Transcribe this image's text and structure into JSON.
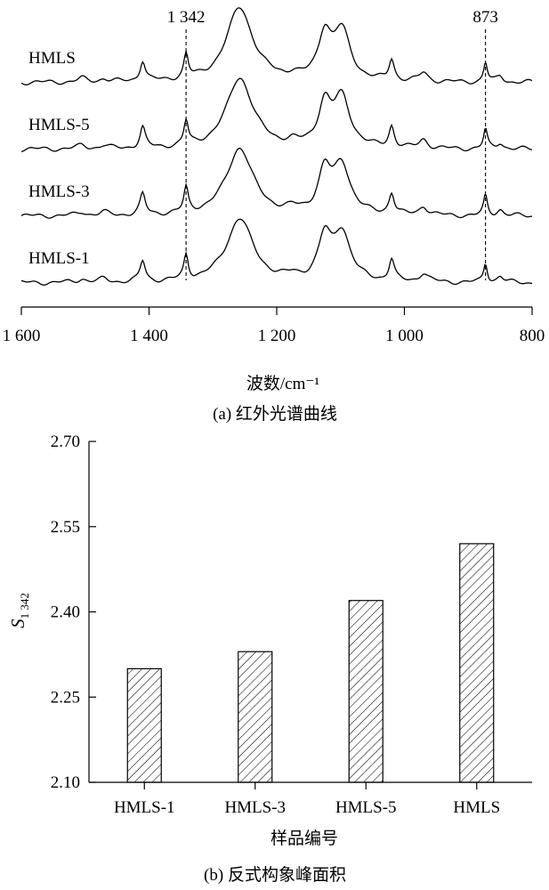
{
  "chart_data": [
    {
      "type": "line",
      "panel": "a",
      "caption": "(a) 红外光谱曲线",
      "xlabel": "波数/cm⁻¹",
      "ylabel": "",
      "xlim": [
        1600,
        800
      ],
      "x_reversed": true,
      "xticks": [
        1600,
        1400,
        1200,
        1000,
        800
      ],
      "xtick_labels": [
        "1 600",
        "1 400",
        "1 200",
        "1 000",
        "800"
      ],
      "grid": false,
      "annotations": [
        {
          "text": "1 342",
          "x": 1342,
          "style": "dashed vertical line"
        },
        {
          "text": "873",
          "x": 873,
          "style": "dashed vertical line"
        }
      ],
      "peaks_cm": [
        1505,
        1471,
        1410,
        1342,
        1255,
        1120,
        1100,
        1020,
        970,
        873,
        850
      ],
      "series": [
        {
          "name": "HMLS",
          "offset": 3
        },
        {
          "name": "HMLS-5",
          "offset": 2
        },
        {
          "name": "HMLS-3",
          "offset": 1
        },
        {
          "name": "HMLS-1",
          "offset": 0
        }
      ]
    },
    {
      "type": "bar",
      "panel": "b",
      "caption": "(b)  反式构象峰面积",
      "xlabel": "样品编号",
      "ylabel": "S",
      "ylabel_sub": "1 342",
      "ylim": [
        2.1,
        2.7
      ],
      "yticks": [
        2.1,
        2.25,
        2.4,
        2.55,
        2.7
      ],
      "ytick_labels": [
        "2.10",
        "2.25",
        "2.40",
        "2.55",
        "2.70"
      ],
      "categories": [
        "HMLS-1",
        "HMLS-3",
        "HMLS-5",
        "HMLS"
      ],
      "values": [
        2.3,
        2.33,
        2.42,
        2.52
      ],
      "bar_fill": "hatched",
      "grid": false
    }
  ]
}
